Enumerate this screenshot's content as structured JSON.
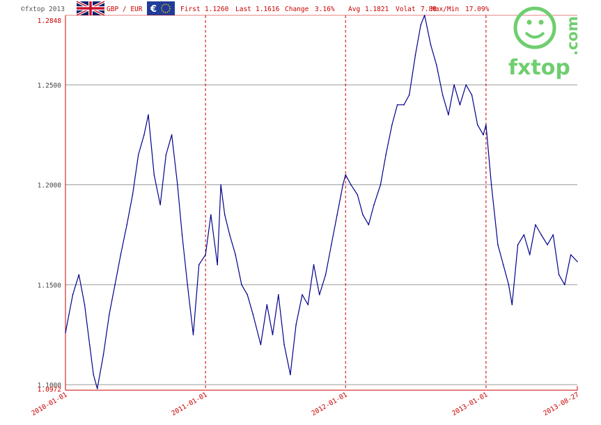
{
  "header": {
    "copyright": "©fxtop 2013",
    "pair": "GBP / EUR",
    "first_label": "First",
    "first_value": "1.1260",
    "last_label": "Last",
    "last_value": "1.1616",
    "change_label": "Change",
    "change_value": "3.16%",
    "avg_label": "Avg",
    "avg_value": "1.1821",
    "volat_label": "Volat",
    "volat_value": "7.88",
    "maxmin_label": "Max/Min",
    "maxmin_value": "17.09%"
  },
  "logo": {
    "brand": "fxtop",
    "tld": ".com",
    "color": "#6fce6f"
  },
  "colors": {
    "line": "#00008b",
    "accent": "#cc0000",
    "grid": "#999999"
  },
  "chart_data": {
    "type": "line",
    "title": "",
    "xlabel": "",
    "ylabel": "",
    "ylim": [
      1.0972,
      1.2848
    ],
    "y_ticks": [
      "1.1000",
      "1.1500",
      "1.2000",
      "1.2500"
    ],
    "y_min_label": "1.0972",
    "y_max_label": "1.2848",
    "x_ticks": [
      "2010-01-01",
      "2011-01-01",
      "2012-01-01",
      "2013-01-01",
      "2013-08-27"
    ],
    "grid": true,
    "series": [
      {
        "points": [
          [
            "2010-01-01",
            1.126
          ],
          [
            "2010-01-20",
            1.145
          ],
          [
            "2010-02-05",
            1.155
          ],
          [
            "2010-02-20",
            1.14
          ],
          [
            "2010-03-05",
            1.12
          ],
          [
            "2010-03-15",
            1.105
          ],
          [
            "2010-03-25",
            1.098
          ],
          [
            "2010-04-10",
            1.115
          ],
          [
            "2010-04-25",
            1.135
          ],
          [
            "2010-05-10",
            1.15
          ],
          [
            "2010-05-25",
            1.165
          ],
          [
            "2010-06-10",
            1.18
          ],
          [
            "2010-06-25",
            1.195
          ],
          [
            "2010-07-10",
            1.215
          ],
          [
            "2010-07-25",
            1.225
          ],
          [
            "2010-08-05",
            1.235
          ],
          [
            "2010-08-20",
            1.205
          ],
          [
            "2010-09-05",
            1.19
          ],
          [
            "2010-09-20",
            1.215
          ],
          [
            "2010-10-05",
            1.225
          ],
          [
            "2010-10-20",
            1.2
          ],
          [
            "2010-11-01",
            1.175
          ],
          [
            "2010-11-15",
            1.15
          ],
          [
            "2010-11-30",
            1.125
          ],
          [
            "2010-12-15",
            1.16
          ],
          [
            "2011-01-01",
            1.165
          ],
          [
            "2011-01-15",
            1.185
          ],
          [
            "2011-02-01",
            1.16
          ],
          [
            "2011-02-10",
            1.2
          ],
          [
            "2011-02-20",
            1.185
          ],
          [
            "2011-03-05",
            1.175
          ],
          [
            "2011-03-20",
            1.165
          ],
          [
            "2011-04-05",
            1.15
          ],
          [
            "2011-04-20",
            1.145
          ],
          [
            "2011-05-05",
            1.135
          ],
          [
            "2011-05-25",
            1.12
          ],
          [
            "2011-06-10",
            1.14
          ],
          [
            "2011-06-25",
            1.125
          ],
          [
            "2011-07-10",
            1.145
          ],
          [
            "2011-07-25",
            1.12
          ],
          [
            "2011-08-10",
            1.105
          ],
          [
            "2011-08-25",
            1.13
          ],
          [
            "2011-09-10",
            1.145
          ],
          [
            "2011-09-25",
            1.14
          ],
          [
            "2011-10-10",
            1.16
          ],
          [
            "2011-10-25",
            1.145
          ],
          [
            "2011-11-10",
            1.155
          ],
          [
            "2011-11-25",
            1.17
          ],
          [
            "2011-12-10",
            1.185
          ],
          [
            "2011-12-25",
            1.2
          ],
          [
            "2012-01-01",
            1.205
          ],
          [
            "2012-01-15",
            1.2
          ],
          [
            "2012-02-01",
            1.195
          ],
          [
            "2012-02-15",
            1.185
          ],
          [
            "2012-03-01",
            1.18
          ],
          [
            "2012-03-15",
            1.19
          ],
          [
            "2012-04-01",
            1.2
          ],
          [
            "2012-04-15",
            1.215
          ],
          [
            "2012-05-01",
            1.23
          ],
          [
            "2012-05-15",
            1.24
          ],
          [
            "2012-06-01",
            1.24
          ],
          [
            "2012-06-15",
            1.245
          ],
          [
            "2012-07-01",
            1.265
          ],
          [
            "2012-07-15",
            1.28
          ],
          [
            "2012-07-25",
            1.2848
          ],
          [
            "2012-08-10",
            1.27
          ],
          [
            "2012-08-25",
            1.26
          ],
          [
            "2012-09-10",
            1.245
          ],
          [
            "2012-09-25",
            1.235
          ],
          [
            "2012-10-10",
            1.25
          ],
          [
            "2012-10-25",
            1.24
          ],
          [
            "2012-11-10",
            1.25
          ],
          [
            "2012-11-25",
            1.245
          ],
          [
            "2012-12-10",
            1.23
          ],
          [
            "2012-12-25",
            1.225
          ],
          [
            "2013-01-01",
            1.23
          ],
          [
            "2013-01-15",
            1.2
          ],
          [
            "2013-02-01",
            1.17
          ],
          [
            "2013-02-15",
            1.16
          ],
          [
            "2013-03-01",
            1.15
          ],
          [
            "2013-03-10",
            1.14
          ],
          [
            "2013-03-25",
            1.17
          ],
          [
            "2013-04-10",
            1.175
          ],
          [
            "2013-04-25",
            1.165
          ],
          [
            "2013-05-10",
            1.18
          ],
          [
            "2013-05-25",
            1.175
          ],
          [
            "2013-06-10",
            1.17
          ],
          [
            "2013-06-25",
            1.175
          ],
          [
            "2013-07-10",
            1.155
          ],
          [
            "2013-07-25",
            1.15
          ],
          [
            "2013-08-10",
            1.165
          ],
          [
            "2013-08-27",
            1.1616
          ]
        ]
      }
    ]
  }
}
